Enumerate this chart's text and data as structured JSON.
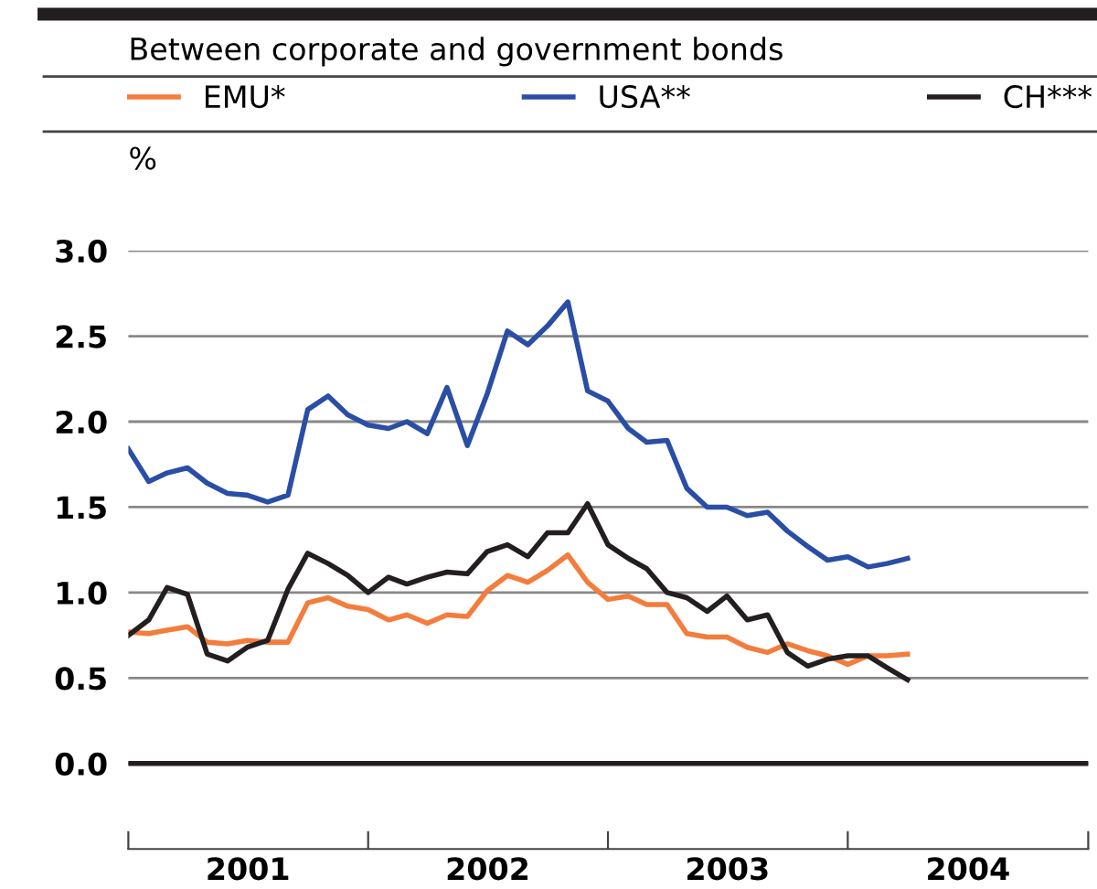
{
  "chart_data": {
    "type": "line",
    "title": "Between corporate and government bonds",
    "ylabel": "%",
    "x": [
      "2001-01",
      "2001-02",
      "2001-03",
      "2001-04",
      "2001-05",
      "2001-06",
      "2001-07",
      "2001-08",
      "2001-09",
      "2001-10",
      "2001-11",
      "2001-12",
      "2002-01",
      "2002-02",
      "2002-03",
      "2002-04",
      "2002-05",
      "2002-06",
      "2002-07",
      "2002-08",
      "2002-09",
      "2002-10",
      "2002-11",
      "2002-12",
      "2003-01",
      "2003-02",
      "2003-03",
      "2003-04",
      "2003-05",
      "2003-06",
      "2003-07",
      "2003-08",
      "2003-09",
      "2003-10",
      "2003-11",
      "2003-12",
      "2004-01",
      "2004-02",
      "2004-03",
      "2004-04"
    ],
    "series": [
      {
        "name": "EMU*",
        "color": "#f47c3c",
        "values": [
          0.77,
          0.76,
          0.78,
          0.8,
          0.71,
          0.7,
          0.72,
          0.71,
          0.71,
          0.94,
          0.97,
          0.92,
          0.9,
          0.84,
          0.87,
          0.82,
          0.87,
          0.86,
          1.01,
          1.1,
          1.06,
          1.13,
          1.22,
          1.06,
          0.96,
          0.98,
          0.93,
          0.93,
          0.76,
          0.74,
          0.74,
          0.68,
          0.65,
          0.7,
          0.66,
          0.63,
          0.58,
          0.63,
          0.63,
          0.64
        ]
      },
      {
        "name": "USA**",
        "color": "#2a4ea6",
        "values": [
          1.84,
          1.65,
          1.7,
          1.73,
          1.64,
          1.58,
          1.57,
          1.53,
          1.57,
          2.07,
          2.15,
          2.04,
          1.98,
          1.96,
          2.0,
          1.93,
          2.2,
          1.86,
          2.16,
          2.53,
          2.45,
          2.56,
          2.7,
          2.18,
          2.12,
          1.96,
          1.88,
          1.89,
          1.61,
          1.5,
          1.5,
          1.45,
          1.47,
          1.36,
          1.27,
          1.19,
          1.21,
          1.15,
          1.17,
          1.2
        ]
      },
      {
        "name": "CH***",
        "color": "#231f20",
        "values": [
          0.75,
          0.84,
          1.03,
          0.99,
          0.64,
          0.6,
          0.68,
          0.72,
          1.02,
          1.23,
          1.17,
          1.1,
          1.0,
          1.09,
          1.05,
          1.09,
          1.12,
          1.11,
          1.24,
          1.28,
          1.21,
          1.35,
          1.35,
          1.52,
          1.28,
          1.2,
          1.14,
          1.0,
          0.97,
          0.89,
          0.98,
          0.84,
          0.87,
          0.65,
          0.57,
          0.61,
          0.63,
          0.63,
          0.56,
          0.49
        ]
      }
    ],
    "xlim": [
      "2001-01-01",
      "2005-01-01"
    ],
    "xticks": [
      {
        "value": "2001-01-01",
        "label": null
      },
      {
        "value": "2001-07-02",
        "label": "2001"
      },
      {
        "value": "2002-01-01",
        "label": null
      },
      {
        "value": "2002-07-02",
        "label": "2002"
      },
      {
        "value": "2003-01-01",
        "label": null
      },
      {
        "value": "2003-07-02",
        "label": "2003"
      },
      {
        "value": "2004-01-01",
        "label": null
      },
      {
        "value": "2004-07-02",
        "label": "2004"
      },
      {
        "value": "2005-01-01",
        "label": null
      }
    ],
    "ylim": [
      -0.5,
      3.0
    ],
    "yticks": [
      {
        "value": 0,
        "label": "0.0"
      },
      {
        "value": 0.5,
        "label": "0.5"
      },
      {
        "value": 1,
        "label": "1.0"
      },
      {
        "value": 1.5,
        "label": "1.5"
      },
      {
        "value": 2,
        "label": "2.0"
      },
      {
        "value": 2.5,
        "label": "2.5"
      },
      {
        "value": 3,
        "label": "3.0"
      }
    ],
    "ref_lines": [
      {
        "axis": "y",
        "value": 0,
        "color": "#231f20"
      }
    ],
    "grid": "y",
    "legend": "top"
  }
}
